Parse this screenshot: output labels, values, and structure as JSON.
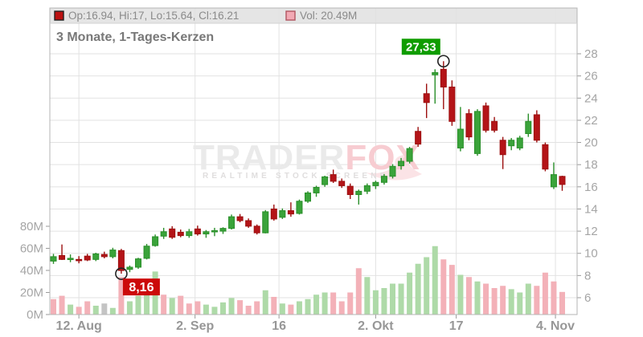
{
  "legend": {
    "ohlc_text": "Op:16.94, Hi:17, Lo:15.64, Cl:16.21",
    "vol_text": "Vol: 20.49M"
  },
  "title": "3 Monate, 1-Tages-Kerzen",
  "watermark": {
    "part1": "TRADER",
    "part2": "FOX",
    "subtitle": "REALTIME STOCK SCREENER"
  },
  "annotations": {
    "high": {
      "index": 46,
      "value": 27.33,
      "label": "27,33"
    },
    "low": {
      "index": 8,
      "value": 8.16,
      "label": "8,16"
    }
  },
  "colors": {
    "up_fill": "#3aa33a",
    "up_stroke": "#2a8f2a",
    "down_fill": "#b41418",
    "down_stroke": "#9c0f0f",
    "vol_up": "#aedaa8",
    "vol_down": "#f3b1b8",
    "vol_neutral": "#c4c4c4",
    "grid": "#e2e2e2",
    "border": "#b5b5b5",
    "axis_text": "#a5a5a5",
    "x_text": "#979797",
    "legend_bg": "#e5e5e5",
    "legend_text": "#8a8a8a",
    "legend_candle_swatch": "#bb1111",
    "legend_vol_swatch": "#f2a9b4",
    "title_text": "#787878",
    "badge_high_bg": "#0f9c00",
    "badge_low_bg": "#cc0a0a",
    "badge_text": "#ffffff",
    "marker_stroke": "#222222",
    "watermark_gray": "#eaeaea",
    "watermark_pink": "#f7ccd1"
  },
  "chart_data": {
    "type": "candlestick_volume",
    "title": "3 Monate, 1-Tages-Kerzen",
    "price_axis": {
      "min": 6,
      "max": 28,
      "ticks": [
        6,
        8,
        10,
        12,
        14,
        16,
        18,
        20,
        22,
        24,
        26,
        28
      ]
    },
    "volume_axis": {
      "max_m": 80,
      "ticks": [
        {
          "v": 0,
          "label": "0M"
        },
        {
          "v": 20,
          "label": "20M"
        },
        {
          "v": 40,
          "label": "40M"
        },
        {
          "v": 60,
          "label": "60M"
        },
        {
          "v": 80,
          "label": "80M"
        }
      ]
    },
    "x_ticks": [
      {
        "i": 3,
        "label": "12. Aug"
      },
      {
        "i": 16.7,
        "label": "2. Sep"
      },
      {
        "i": 26.6,
        "label": "16"
      },
      {
        "i": 38,
        "label": "2. Okt"
      },
      {
        "i": 47.5,
        "label": "17"
      },
      {
        "i": 59.2,
        "label": "4. Nov"
      }
    ],
    "candles_note": "each row = [open, high, low, close, volume_M, vol_color g|p|n]",
    "candles": [
      [
        9.3,
        9.95,
        9.05,
        9.7,
        14,
        "p"
      ],
      [
        9.8,
        10.8,
        9.4,
        9.45,
        17,
        "p"
      ],
      [
        9.5,
        9.9,
        9.2,
        9.55,
        9,
        "g"
      ],
      [
        9.45,
        9.75,
        9.1,
        9.4,
        7,
        "p"
      ],
      [
        9.75,
        9.95,
        9.3,
        9.4,
        12,
        "p"
      ],
      [
        9.45,
        10.05,
        9.3,
        9.95,
        8,
        "g"
      ],
      [
        9.9,
        10.15,
        9.55,
        9.7,
        10,
        "n"
      ],
      [
        9.7,
        10.5,
        9.55,
        10.3,
        6,
        "g"
      ],
      [
        10.25,
        10.4,
        8.16,
        8.45,
        34,
        "p"
      ],
      [
        8.55,
        8.9,
        8.3,
        8.75,
        12,
        "g"
      ],
      [
        8.75,
        9.6,
        8.6,
        9.5,
        17,
        "g"
      ],
      [
        9.55,
        10.85,
        9.45,
        10.65,
        21,
        "g"
      ],
      [
        10.7,
        11.7,
        10.6,
        11.5,
        39,
        "g"
      ],
      [
        11.55,
        12.3,
        11.3,
        11.95,
        18,
        "p"
      ],
      [
        12.2,
        12.45,
        11.3,
        11.45,
        15,
        "g"
      ],
      [
        11.9,
        12.15,
        11.45,
        11.6,
        17,
        "p"
      ],
      [
        11.6,
        12.2,
        11.4,
        11.95,
        10,
        "p"
      ],
      [
        12.2,
        12.5,
        11.6,
        11.75,
        12,
        "p"
      ],
      [
        11.75,
        12.1,
        11.4,
        11.95,
        9,
        "g"
      ],
      [
        11.95,
        12.3,
        11.55,
        12.05,
        7,
        "g"
      ],
      [
        12.0,
        12.35,
        11.75,
        12.25,
        11,
        "g"
      ],
      [
        12.25,
        13.5,
        12.15,
        13.3,
        15,
        "g"
      ],
      [
        13.3,
        13.55,
        12.8,
        12.95,
        13,
        "p"
      ],
      [
        12.95,
        13.15,
        12.3,
        12.45,
        8,
        "p"
      ],
      [
        12.45,
        12.6,
        11.7,
        11.85,
        12,
        "p"
      ],
      [
        11.85,
        13.9,
        11.8,
        13.75,
        22,
        "g"
      ],
      [
        14.0,
        14.4,
        12.95,
        13.1,
        16,
        "p"
      ],
      [
        13.25,
        14.05,
        13.1,
        13.85,
        10,
        "g"
      ],
      [
        13.85,
        14.6,
        13.3,
        13.55,
        9,
        "p"
      ],
      [
        13.6,
        14.85,
        13.5,
        14.7,
        12,
        "g"
      ],
      [
        14.7,
        15.6,
        14.55,
        15.45,
        14,
        "g"
      ],
      [
        15.45,
        16.1,
        15.1,
        15.95,
        18,
        "g"
      ],
      [
        16.2,
        17.0,
        16.0,
        16.9,
        20,
        "g"
      ],
      [
        17.1,
        17.55,
        16.35,
        16.5,
        20,
        "p"
      ],
      [
        16.5,
        16.75,
        15.9,
        16.1,
        12,
        "p"
      ],
      [
        16.05,
        16.3,
        14.9,
        15.3,
        20,
        "p"
      ],
      [
        15.3,
        15.75,
        14.4,
        15.6,
        42,
        "p"
      ],
      [
        15.6,
        16.3,
        15.35,
        16.1,
        34,
        "g"
      ],
      [
        16.1,
        16.55,
        15.8,
        16.4,
        22,
        "g"
      ],
      [
        16.4,
        17.15,
        16.2,
        16.95,
        24,
        "g"
      ],
      [
        16.95,
        18.05,
        16.75,
        17.85,
        28,
        "g"
      ],
      [
        17.9,
        18.6,
        17.55,
        18.3,
        28,
        "g"
      ],
      [
        18.3,
        19.6,
        18.1,
        19.45,
        38,
        "g"
      ],
      [
        21.0,
        21.4,
        19.6,
        19.85,
        46,
        "g"
      ],
      [
        24.4,
        25.3,
        22.2,
        23.6,
        52,
        "g"
      ],
      [
        26.1,
        26.6,
        23.5,
        26.3,
        62,
        "g"
      ],
      [
        26.6,
        27.33,
        23.0,
        25.0,
        50,
        "p"
      ],
      [
        25.0,
        25.6,
        21.5,
        21.9,
        45,
        "p"
      ],
      [
        19.5,
        23.2,
        19.2,
        21.2,
        36,
        "g"
      ],
      [
        22.6,
        23.0,
        20.2,
        20.5,
        34,
        "p"
      ],
      [
        19.0,
        23.0,
        18.8,
        22.8,
        30,
        "g"
      ],
      [
        23.3,
        23.6,
        20.9,
        21.1,
        28,
        "p"
      ],
      [
        21.9,
        22.3,
        20.9,
        21.1,
        24,
        "p"
      ],
      [
        20.2,
        20.5,
        17.6,
        18.9,
        26,
        "p"
      ],
      [
        19.7,
        20.4,
        19.3,
        20.2,
        23,
        "g"
      ],
      [
        19.5,
        20.6,
        19.3,
        20.4,
        20,
        "g"
      ],
      [
        20.8,
        22.6,
        20.5,
        21.9,
        28,
        "g"
      ],
      [
        22.5,
        22.9,
        20.0,
        20.2,
        26,
        "p"
      ],
      [
        19.8,
        20.0,
        17.4,
        17.6,
        38,
        "p"
      ],
      [
        16.0,
        18.2,
        15.8,
        17.1,
        30,
        "p"
      ],
      [
        16.94,
        17.0,
        15.64,
        16.21,
        20.49,
        "p"
      ]
    ]
  }
}
